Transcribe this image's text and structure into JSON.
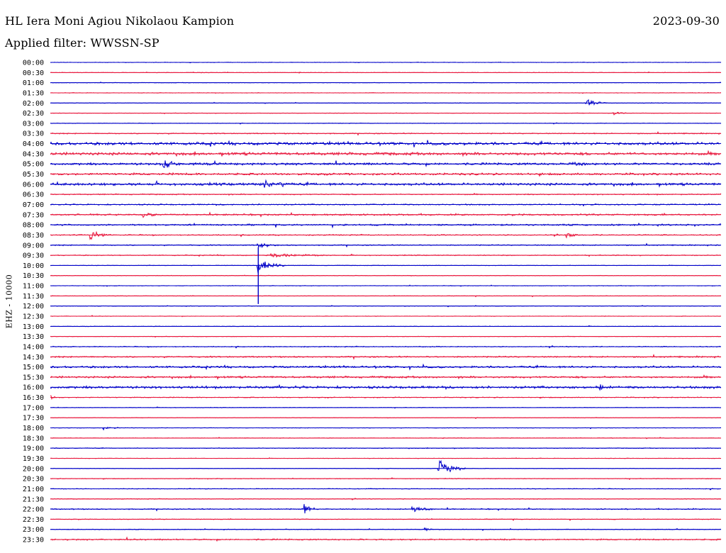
{
  "header": {
    "station": "HL Iera Moni Agiou Nikolaou Kampion",
    "date": "2023-09-30",
    "filter": "Applied filter: WWSSN-SP"
  },
  "axis": {
    "ylabel": "EHZ - 10000"
  },
  "colors": {
    "trace_a": "#0000c8",
    "trace_b": "#e8163c"
  },
  "chart_data": {
    "type": "line",
    "title": "HL Iera Moni Agiou Nikolaou Kampion",
    "subtitle": "Applied filter: WWSSN-SP",
    "ylabel": "EHZ - 10000",
    "rows": [
      "00:00",
      "00:30",
      "01:00",
      "01:30",
      "02:00",
      "02:30",
      "03:00",
      "03:30",
      "04:00",
      "04:30",
      "05:00",
      "05:30",
      "06:00",
      "06:30",
      "07:00",
      "07:30",
      "08:00",
      "08:30",
      "09:00",
      "09:30",
      "10:00",
      "10:30",
      "11:00",
      "11:30",
      "12:00",
      "12:30",
      "13:00",
      "13:30",
      "14:00",
      "14:30",
      "15:00",
      "15:30",
      "16:00",
      "16:30",
      "17:00",
      "17:30",
      "18:00",
      "18:30",
      "19:00",
      "19:30",
      "20:00",
      "20:30",
      "21:00",
      "21:30",
      "22:00",
      "22:30",
      "23:00",
      "23:30"
    ],
    "row_colors": [
      "#0000c8",
      "#e8163c"
    ],
    "noise": [
      0.3,
      0.3,
      0.3,
      0.3,
      0.3,
      0.3,
      0.3,
      0.6,
      1.6,
      1.6,
      1.3,
      1.2,
      1.4,
      0.6,
      0.7,
      0.9,
      0.9,
      0.6,
      0.6,
      0.5,
      0.3,
      0.3,
      0.3,
      0.3,
      0.3,
      0.3,
      0.3,
      0.3,
      0.5,
      0.8,
      1.1,
      1.1,
      1.4,
      0.5,
      0.3,
      0.3,
      0.3,
      0.3,
      0.4,
      0.3,
      0.3,
      0.4,
      0.4,
      0.4,
      0.6,
      0.4,
      0.4,
      0.8
    ],
    "events": [
      {
        "row": 4,
        "t": 0.8,
        "amp": 6,
        "dur": 0.03
      },
      {
        "row": 5,
        "t": 0.84,
        "amp": 3,
        "dur": 0.02
      },
      {
        "row": 10,
        "t": 0.17,
        "amp": 6,
        "dur": 0.03
      },
      {
        "row": 10,
        "t": 0.78,
        "amp": 4,
        "dur": 0.02
      },
      {
        "row": 12,
        "t": 0.32,
        "amp": 6,
        "dur": 0.04
      },
      {
        "row": 15,
        "t": 0.14,
        "amp": 4,
        "dur": 0.02
      },
      {
        "row": 17,
        "t": 0.06,
        "amp": 8,
        "dur": 0.03
      },
      {
        "row": 17,
        "t": 0.77,
        "amp": 4,
        "dur": 0.02
      },
      {
        "row": 18,
        "t": 0.31,
        "amp": 4,
        "dur": 0.03
      },
      {
        "row": 19,
        "t": 0.33,
        "amp": 3,
        "dur": 0.08
      },
      {
        "row": 20,
        "t": 0.31,
        "amp": 12,
        "dur": 0.04
      },
      {
        "row": 32,
        "t": 0.82,
        "amp": 5,
        "dur": 0.02
      },
      {
        "row": 33,
        "t": 0.0,
        "amp": 4,
        "dur": 0.01
      },
      {
        "row": 36,
        "t": 0.08,
        "amp": 3,
        "dur": 0.01
      },
      {
        "row": 40,
        "t": 0.58,
        "amp": 15,
        "dur": 0.04
      },
      {
        "row": 44,
        "t": 0.38,
        "amp": 8,
        "dur": 0.02
      },
      {
        "row": 44,
        "t": 0.54,
        "amp": 5,
        "dur": 0.03
      },
      {
        "row": 46,
        "t": 0.56,
        "amp": 3,
        "dur": 0.01
      }
    ],
    "spikes": [
      {
        "row": 20,
        "t": 0.31,
        "up": 1.8,
        "down": 3.8
      }
    ]
  }
}
